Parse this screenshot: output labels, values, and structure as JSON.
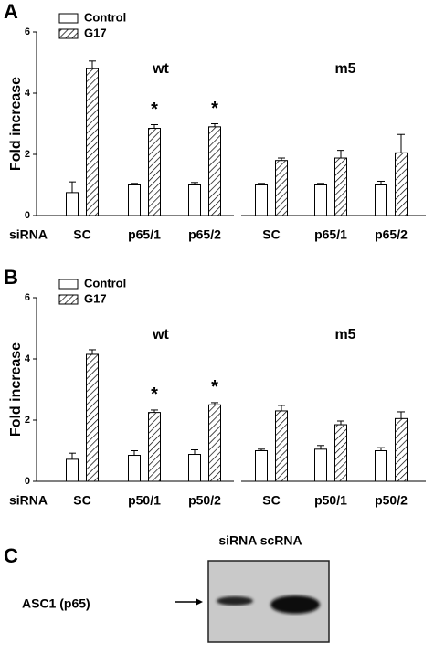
{
  "chart_data": [
    {
      "type": "bar",
      "panel_label": "A",
      "ylabel": "Fold increase",
      "x_row_label": "siRNA",
      "categories": [
        "SC",
        "p65/1",
        "p65/2",
        "SC",
        "p65/1",
        "p65/2"
      ],
      "groups": [
        "wt",
        "m5"
      ],
      "ylim": [
        0,
        6
      ],
      "yticks": [
        0,
        2,
        4,
        6
      ],
      "series": [
        {
          "name": "Control",
          "color": "#000000",
          "hatch": false,
          "values": [
            0.75,
            1.0,
            1.0,
            1.0,
            1.0,
            1.0
          ],
          "errors": [
            0.35,
            0.05,
            0.08,
            0.05,
            0.05,
            0.12
          ]
        },
        {
          "name": "G17",
          "color": "#000000",
          "hatch": true,
          "values": [
            4.8,
            2.85,
            2.9,
            1.8,
            1.88,
            2.05
          ],
          "errors": [
            0.25,
            0.12,
            0.1,
            0.08,
            0.25,
            0.6
          ]
        }
      ],
      "significance": [
        null,
        "*",
        "*",
        null,
        null,
        null
      ]
    },
    {
      "type": "bar",
      "panel_label": "B",
      "ylabel": "Fold increase",
      "x_row_label": "siRNA",
      "categories": [
        "SC",
        "p50/1",
        "p50/2",
        "SC",
        "p50/1",
        "p50/2"
      ],
      "groups": [
        "wt",
        "m5"
      ],
      "ylim": [
        0,
        6
      ],
      "yticks": [
        0,
        2,
        4,
        6
      ],
      "series": [
        {
          "name": "Control",
          "color": "#000000",
          "hatch": false,
          "values": [
            0.72,
            0.85,
            0.88,
            1.0,
            1.05,
            1.0
          ],
          "errors": [
            0.2,
            0.15,
            0.15,
            0.05,
            0.12,
            0.1
          ]
        },
        {
          "name": "G17",
          "color": "#000000",
          "hatch": true,
          "values": [
            4.15,
            2.25,
            2.5,
            2.3,
            1.85,
            2.05
          ],
          "errors": [
            0.15,
            0.08,
            0.07,
            0.18,
            0.12,
            0.22
          ]
        }
      ],
      "significance": [
        null,
        "*",
        "*",
        null,
        null,
        null
      ]
    }
  ],
  "blot": {
    "panel_label": "C",
    "header": "siRNA scRNA",
    "label": "ASC1 (p65)"
  }
}
